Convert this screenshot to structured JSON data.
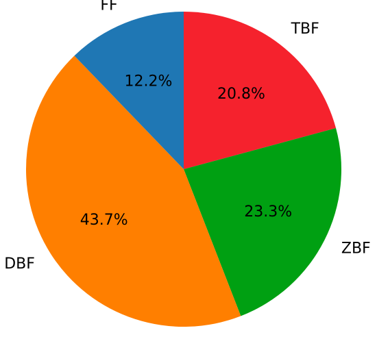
{
  "chart_data": {
    "type": "pie",
    "start_angle_deg": 90,
    "direction": "clockwise",
    "slices": [
      {
        "label": "TBF",
        "value": 20.8,
        "pct_label": "20.8%",
        "color": "#f5222d"
      },
      {
        "label": "ZBF",
        "value": 23.3,
        "pct_label": "23.3%",
        "color": "#00a012"
      },
      {
        "label": "DBF",
        "value": 43.7,
        "pct_label": "43.7%",
        "color": "#ff7f00"
      },
      {
        "label": "FF",
        "value": 12.2,
        "pct_label": "12.2%",
        "color": "#1f77b4"
      }
    ]
  }
}
